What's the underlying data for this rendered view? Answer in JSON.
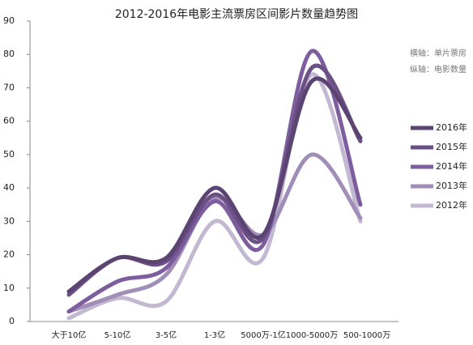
{
  "chart_data": {
    "type": "line",
    "title": "2012-2016年电影主流票房区间影片数量趋势图",
    "annotations": [
      "横轴：单片票房",
      "纵轴：电影数量"
    ],
    "categories": [
      "大于10亿",
      "5-10亿",
      "3-5亿",
      "1-3亿",
      "5000万-1亿",
      "1000-5000万",
      "500-1000万"
    ],
    "series": [
      {
        "name": "2016年",
        "color": "#5b4372",
        "values": [
          9,
          19,
          19,
          40,
          26,
          72,
          55
        ]
      },
      {
        "name": "2015年",
        "color": "#6b5085",
        "values": [
          8,
          19,
          18,
          38,
          25,
          76,
          54
        ]
      },
      {
        "name": "2014年",
        "color": "#7e5d9e",
        "values": [
          3,
          12,
          16,
          36,
          23,
          81,
          35
        ]
      },
      {
        "name": "2013年",
        "color": "#a08eb8",
        "values": [
          3,
          8,
          14,
          37,
          26,
          50,
          31
        ]
      },
      {
        "name": "2012年",
        "color": "#c2b8d1",
        "values": [
          1,
          7,
          6,
          30,
          19,
          74,
          30
        ]
      }
    ],
    "ylim": [
      0,
      90
    ],
    "yticks": [
      0,
      10,
      20,
      30,
      40,
      50,
      60,
      70,
      80,
      90
    ],
    "smooth": true,
    "legend": "right"
  }
}
